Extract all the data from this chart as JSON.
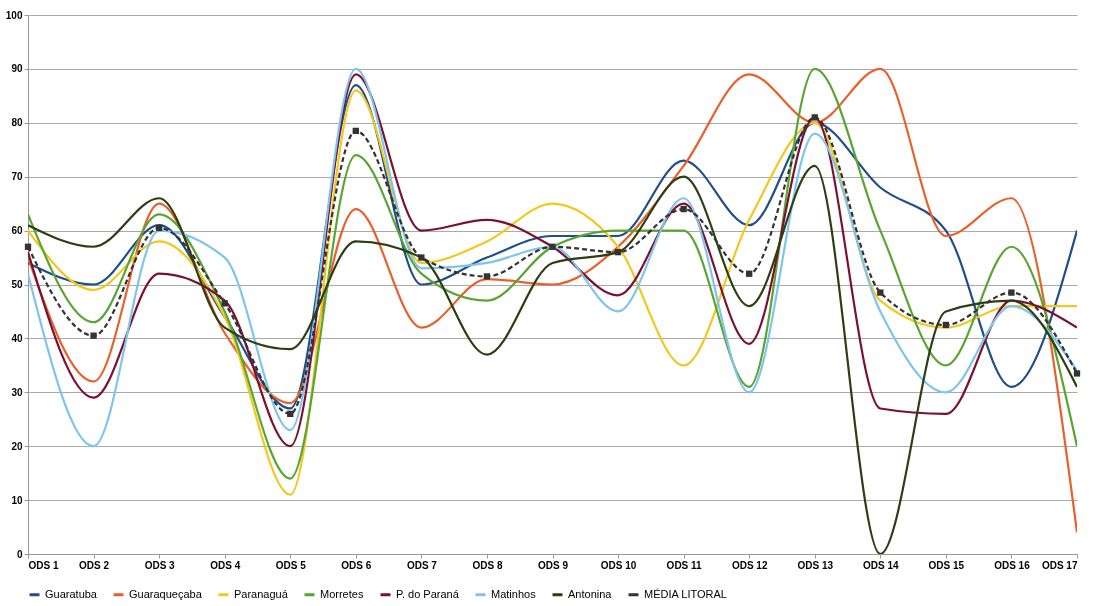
{
  "chart_data": {
    "type": "line",
    "categories": [
      "ODS 1",
      "ODS 2",
      "ODS 3",
      "ODS 4",
      "ODS 5",
      "ODS 6",
      "ODS 7",
      "ODS 8",
      "ODS 9",
      "ODS 10",
      "ODS 11",
      "ODS 12",
      "ODS 13",
      "ODS 14",
      "ODS 15",
      "ODS 16",
      "ODS 17"
    ],
    "ylim": [
      0,
      100
    ],
    "yticks": [
      0,
      10,
      20,
      30,
      40,
      50,
      60,
      70,
      80,
      90,
      100
    ],
    "grid": "y",
    "legend": "bottom",
    "series": [
      {
        "name": "Guaratuba",
        "color": "#1f4e89",
        "line_style": "solid",
        "marker": "none",
        "values": [
          54,
          50,
          61,
          44,
          27,
          87,
          50,
          55,
          59,
          59,
          73,
          61,
          80,
          68,
          60,
          31,
          60
        ]
      },
      {
        "name": "Guaraqueçaba",
        "color": "#e8602c",
        "line_style": "solid",
        "marker": "none",
        "values": [
          55,
          32,
          65,
          41,
          28,
          64,
          42,
          51,
          50,
          57,
          72,
          89,
          80,
          90,
          59,
          66,
          4
        ]
      },
      {
        "name": "Paranaguá",
        "color": "#f2c81e",
        "line_style": "solid",
        "marker": "none",
        "values": [
          60,
          49,
          58,
          44,
          11,
          86,
          54,
          58,
          65,
          57,
          35,
          62,
          80,
          47,
          42,
          46,
          46
        ]
      },
      {
        "name": "Morretes",
        "color": "#5aa532",
        "line_style": "solid",
        "marker": "none",
        "values": [
          63,
          43,
          63,
          45,
          14,
          74,
          52,
          47,
          57,
          60,
          60,
          31,
          90,
          60,
          35,
          57,
          20
        ]
      },
      {
        "name": "P. do Paraná",
        "color": "#7b1030",
        "line_style": "solid",
        "marker": "none",
        "values": [
          56,
          29,
          52,
          47,
          20,
          89,
          60,
          62,
          57,
          48,
          65,
          39,
          81,
          27,
          26,
          47,
          42
        ]
      },
      {
        "name": "Matinhos",
        "color": "#7ec4ec",
        "line_style": "solid",
        "marker": "none",
        "values": [
          52,
          20,
          60,
          55,
          23,
          90,
          53,
          54,
          57,
          45,
          66,
          30,
          78,
          45,
          30,
          46,
          34
        ]
      },
      {
        "name": "Antonina",
        "color": "#2c3e12",
        "line_style": "solid",
        "marker": "none",
        "values": [
          61,
          57,
          66,
          42,
          38,
          58,
          55,
          37,
          54,
          56,
          70,
          46,
          72,
          0,
          45,
          47,
          31
        ]
      },
      {
        "name": "MÉDIA LITORAL",
        "color": "#333333",
        "line_style": "dashed",
        "marker": "square",
        "values": [
          57,
          40.5,
          60.5,
          46.5,
          26,
          78.5,
          55,
          51.5,
          57,
          56,
          64,
          52,
          81,
          48.5,
          42.5,
          48.5,
          33.5
        ]
      }
    ]
  }
}
